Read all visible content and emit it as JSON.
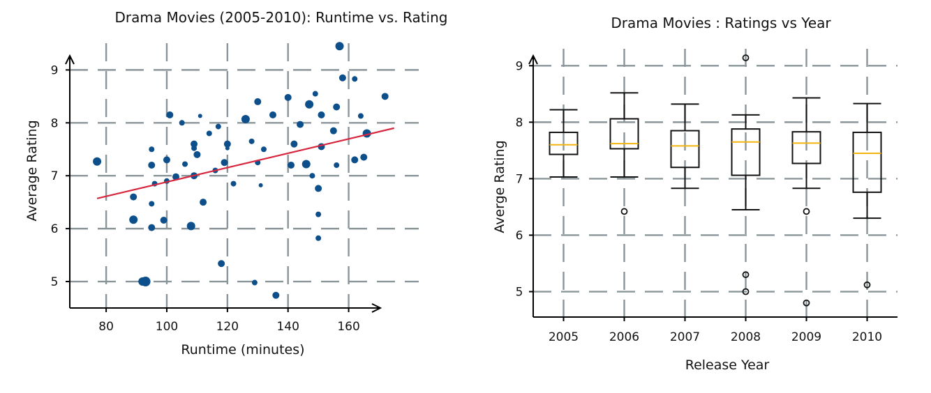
{
  "chart_data": [
    {
      "type": "scatter",
      "title": "Drama Movies (2005-2010): Runtime vs. Rating",
      "xlabel": "Runtime (minutes)",
      "ylabel": "Average Rating",
      "xticks": [
        "80",
        "100",
        "120",
        "140",
        "160"
      ],
      "yticks": [
        "5",
        "6",
        "7",
        "8",
        "9"
      ],
      "xlim": [
        68,
        170
      ],
      "ylim": [
        4.5,
        9.4
      ],
      "grid": true,
      "trend_line": {
        "x": [
          77,
          175
        ],
        "y": [
          6.57,
          7.9
        ],
        "color": "#d7263d"
      },
      "point_color": "#0d4f8b",
      "points": [
        [
          77,
          7.27,
          6
        ],
        [
          89,
          6.6,
          5
        ],
        [
          89,
          6.17,
          6
        ],
        [
          93,
          5.0,
          7
        ],
        [
          92,
          5.0,
          6
        ],
        [
          95,
          7.2,
          5
        ],
        [
          95,
          7.5,
          4
        ],
        [
          95,
          6.47,
          4
        ],
        [
          95,
          6.02,
          5
        ],
        [
          96,
          6.85,
          4
        ],
        [
          99,
          6.16,
          5
        ],
        [
          100,
          7.3,
          5
        ],
        [
          100,
          6.9,
          4
        ],
        [
          101,
          8.15,
          5
        ],
        [
          103,
          6.98,
          5
        ],
        [
          105,
          8.0,
          4
        ],
        [
          106,
          7.22,
          4
        ],
        [
          108,
          6.05,
          6
        ],
        [
          109,
          7.0,
          5
        ],
        [
          109,
          7.6,
          5
        ],
        [
          109,
          7.52,
          4
        ],
        [
          110,
          7.4,
          5
        ],
        [
          111,
          8.13,
          3
        ],
        [
          112,
          6.5,
          5
        ],
        [
          114,
          7.8,
          4
        ],
        [
          116,
          7.1,
          4
        ],
        [
          117,
          7.93,
          4
        ],
        [
          118,
          5.34,
          5
        ],
        [
          119,
          7.25,
          5
        ],
        [
          120,
          7.6,
          5
        ],
        [
          120,
          7.52,
          3
        ],
        [
          122,
          6.85,
          4
        ],
        [
          126,
          8.07,
          6
        ],
        [
          128,
          7.65,
          4
        ],
        [
          129,
          4.98,
          4
        ],
        [
          130,
          7.25,
          4
        ],
        [
          130,
          8.4,
          5
        ],
        [
          131,
          6.82,
          3
        ],
        [
          132,
          7.5,
          4
        ],
        [
          135,
          8.15,
          5
        ],
        [
          136,
          4.74,
          5
        ],
        [
          140,
          8.48,
          5
        ],
        [
          141,
          7.2,
          5
        ],
        [
          142,
          7.6,
          5
        ],
        [
          144,
          7.97,
          5
        ],
        [
          146,
          7.22,
          6
        ],
        [
          147,
          8.35,
          6
        ],
        [
          148,
          7.0,
          4
        ],
        [
          149,
          8.55,
          4
        ],
        [
          150,
          6.76,
          5
        ],
        [
          150,
          6.27,
          4
        ],
        [
          150,
          5.82,
          4
        ],
        [
          151,
          7.55,
          5
        ],
        [
          151,
          8.15,
          5
        ],
        [
          155,
          7.85,
          5
        ],
        [
          156,
          8.3,
          5
        ],
        [
          156,
          7.2,
          4
        ],
        [
          157,
          9.45,
          6
        ],
        [
          158,
          8.85,
          5
        ],
        [
          162,
          7.3,
          5
        ],
        [
          162,
          8.83,
          4
        ],
        [
          164,
          8.13,
          4
        ],
        [
          165,
          7.35,
          5
        ],
        [
          166,
          7.8,
          6
        ],
        [
          172,
          8.5,
          5
        ]
      ]
    },
    {
      "type": "box",
      "title": "Drama Movies : Ratings vs Year",
      "xlabel": "Release Year",
      "ylabel": "Averge Rating",
      "categories": [
        "2005",
        "2006",
        "2007",
        "2008",
        "2009",
        "2010"
      ],
      "yticks": [
        "5",
        "6",
        "7",
        "8",
        "9"
      ],
      "ylim": [
        4.55,
        9.3
      ],
      "grid": true,
      "median_color": "#f2b40f",
      "boxes": [
        {
          "category": "2005",
          "whisker_low": 7.03,
          "q1": 7.43,
          "median": 7.6,
          "q3": 7.82,
          "whisker_high": 8.22,
          "fliers": []
        },
        {
          "category": "2006",
          "whisker_low": 7.03,
          "q1": 7.53,
          "median": 7.62,
          "q3": 8.06,
          "whisker_high": 8.52,
          "fliers": [
            6.42
          ]
        },
        {
          "category": "2007",
          "whisker_low": 6.83,
          "q1": 7.2,
          "median": 7.58,
          "q3": 7.85,
          "whisker_high": 8.32,
          "fliers": []
        },
        {
          "category": "2008",
          "whisker_low": 6.45,
          "q1": 7.06,
          "median": 7.65,
          "q3": 7.88,
          "whisker_high": 8.13,
          "fliers": [
            9.14,
            5.3,
            5.0
          ]
        },
        {
          "category": "2009",
          "whisker_low": 6.83,
          "q1": 7.27,
          "median": 7.63,
          "q3": 7.83,
          "whisker_high": 8.43,
          "fliers": [
            6.42,
            4.8
          ]
        },
        {
          "category": "2010",
          "whisker_low": 6.3,
          "q1": 6.76,
          "median": 7.45,
          "q3": 7.82,
          "whisker_high": 8.33,
          "fliers": [
            5.12
          ]
        }
      ]
    }
  ]
}
